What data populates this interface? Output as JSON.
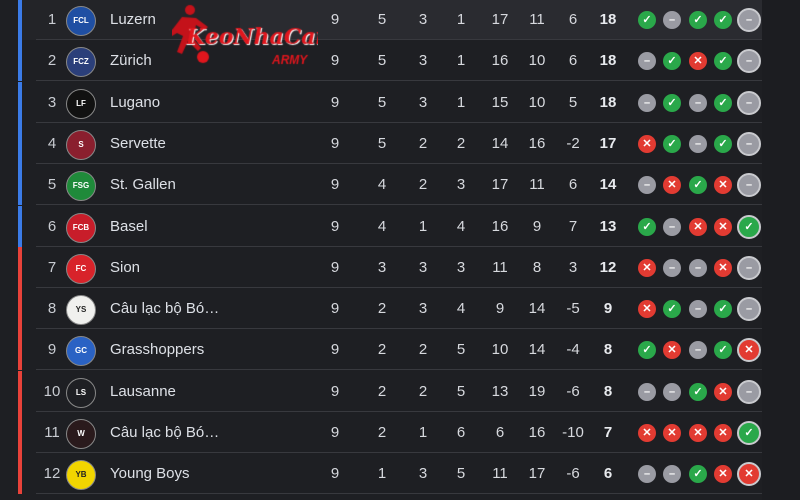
{
  "colors": {
    "champions": "#3b7be8",
    "relegation": "#e8423a",
    "win": "#2aa84a",
    "draw": "#9a9ba3",
    "loss": "#e23b32"
  },
  "watermark": {
    "text": "KeoNhaCai",
    "sub": "ARMY"
  },
  "form_icons": {
    "W": "check-icon",
    "D": "minus-icon",
    "L": "x-icon"
  },
  "rows": [
    {
      "rank": "1",
      "team": "Luzern",
      "logo": "FCL",
      "logo_color": "#1f4fa3",
      "zone": "champions",
      "p": "9",
      "w": "5",
      "d": "3",
      "l": "1",
      "gf": "17",
      "ga": "11",
      "gd": "6",
      "pts": "18",
      "form": [
        "W",
        "D",
        "W",
        "W",
        "D"
      ]
    },
    {
      "rank": "2",
      "team": "Zürich",
      "logo": "FCZ",
      "logo_color": "#2b3f7a",
      "zone": "champions",
      "p": "9",
      "w": "5",
      "d": "3",
      "l": "1",
      "gf": "16",
      "ga": "10",
      "gd": "6",
      "pts": "18",
      "form": [
        "D",
        "W",
        "L",
        "W",
        "D"
      ]
    },
    {
      "rank": "3",
      "team": "Lugano",
      "logo": "LF",
      "logo_color": "#111111",
      "zone": "champions",
      "p": "9",
      "w": "5",
      "d": "3",
      "l": "1",
      "gf": "15",
      "ga": "10",
      "gd": "5",
      "pts": "18",
      "form": [
        "D",
        "W",
        "D",
        "W",
        "D"
      ]
    },
    {
      "rank": "4",
      "team": "Servette",
      "logo": "S",
      "logo_color": "#8a1f2e",
      "zone": "champions",
      "p": "9",
      "w": "5",
      "d": "2",
      "l": "2",
      "gf": "14",
      "ga": "16",
      "gd": "-2",
      "pts": "17",
      "form": [
        "L",
        "W",
        "D",
        "W",
        "D"
      ]
    },
    {
      "rank": "5",
      "team": "St. Gallen",
      "logo": "FSG",
      "logo_color": "#1f8a3a",
      "zone": "champions",
      "p": "9",
      "w": "4",
      "d": "2",
      "l": "3",
      "gf": "17",
      "ga": "11",
      "gd": "6",
      "pts": "14",
      "form": [
        "D",
        "L",
        "W",
        "L",
        "D"
      ]
    },
    {
      "rank": "6",
      "team": "Basel",
      "logo": "FCB",
      "logo_color": "#c81d2a",
      "zone": "champions",
      "p": "9",
      "w": "4",
      "d": "1",
      "l": "4",
      "gf": "16",
      "ga": "9",
      "gd": "7",
      "pts": "13",
      "form": [
        "W",
        "D",
        "L",
        "L",
        "W"
      ]
    },
    {
      "rank": "7",
      "team": "Sion",
      "logo": "FC",
      "logo_color": "#d8232a",
      "zone": "relegation",
      "p": "9",
      "w": "3",
      "d": "3",
      "l": "3",
      "gf": "11",
      "ga": "8",
      "gd": "3",
      "pts": "12",
      "form": [
        "L",
        "D",
        "D",
        "L",
        "D"
      ]
    },
    {
      "rank": "8",
      "team": "Câu lạc bộ Bó…",
      "logo": "YS",
      "logo_color": "#f0f0ee",
      "zone": "relegation",
      "p": "9",
      "w": "2",
      "d": "3",
      "l": "4",
      "gf": "9",
      "ga": "14",
      "gd": "-5",
      "pts": "9",
      "form": [
        "L",
        "W",
        "D",
        "W",
        "D"
      ]
    },
    {
      "rank": "9",
      "team": "Grasshoppers",
      "logo": "GC",
      "logo_color": "#2a62c4",
      "zone": "relegation",
      "p": "9",
      "w": "2",
      "d": "2",
      "l": "5",
      "gf": "10",
      "ga": "14",
      "gd": "-4",
      "pts": "8",
      "form": [
        "W",
        "L",
        "D",
        "W",
        "L"
      ]
    },
    {
      "rank": "10",
      "team": "Lausanne",
      "logo": "LS",
      "logo_color": "#1e1f23",
      "zone": "relegation",
      "p": "9",
      "w": "2",
      "d": "2",
      "l": "5",
      "gf": "13",
      "ga": "19",
      "gd": "-6",
      "pts": "8",
      "form": [
        "D",
        "D",
        "W",
        "L",
        "D"
      ]
    },
    {
      "rank": "11",
      "team": "Câu lạc bộ Bó…",
      "logo": "W",
      "logo_color": "#2a1a1c",
      "zone": "relegation",
      "p": "9",
      "w": "2",
      "d": "1",
      "l": "6",
      "gf": "6",
      "ga": "16",
      "gd": "-10",
      "pts": "7",
      "form": [
        "L",
        "L",
        "L",
        "L",
        "W"
      ]
    },
    {
      "rank": "12",
      "team": "Young Boys",
      "logo": "YB",
      "logo_color": "#f2d500",
      "zone": "relegation",
      "p": "9",
      "w": "1",
      "d": "3",
      "l": "5",
      "gf": "11",
      "ga": "17",
      "gd": "-6",
      "pts": "6",
      "form": [
        "D",
        "D",
        "W",
        "L",
        "L"
      ]
    }
  ]
}
